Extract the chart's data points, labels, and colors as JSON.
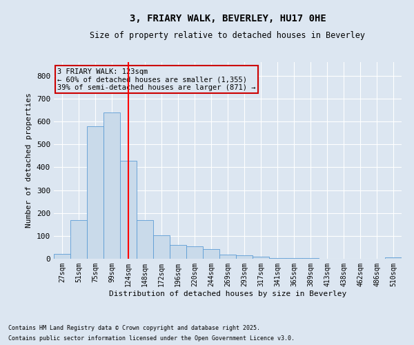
{
  "title": "3, FRIARY WALK, BEVERLEY, HU17 0HE",
  "subtitle": "Size of property relative to detached houses in Beverley",
  "xlabel": "Distribution of detached houses by size in Beverley",
  "ylabel": "Number of detached properties",
  "footnote1": "Contains HM Land Registry data © Crown copyright and database right 2025.",
  "footnote2": "Contains public sector information licensed under the Open Government Licence v3.0.",
  "categories": [
    "27sqm",
    "51sqm",
    "75sqm",
    "99sqm",
    "124sqm",
    "148sqm",
    "172sqm",
    "196sqm",
    "220sqm",
    "244sqm",
    "269sqm",
    "293sqm",
    "317sqm",
    "341sqm",
    "365sqm",
    "389sqm",
    "413sqm",
    "438sqm",
    "462sqm",
    "486sqm",
    "510sqm"
  ],
  "values": [
    20,
    168,
    578,
    640,
    430,
    168,
    103,
    60,
    55,
    42,
    18,
    14,
    8,
    4,
    3,
    2,
    1,
    1,
    1,
    0,
    7
  ],
  "bar_color": "#c9daea",
  "bar_edge_color": "#5b9bd5",
  "background_color": "#dce6f1",
  "grid_color": "#ffffff",
  "annotation_box_color": "#cc0000",
  "annotation_text1": "3 FRIARY WALK: 123sqm",
  "annotation_text2": "← 60% of detached houses are smaller (1,355)",
  "annotation_text3": "39% of semi-detached houses are larger (871) →",
  "red_line_x": 4,
  "ylim": [
    0,
    860
  ],
  "yticks": [
    0,
    100,
    200,
    300,
    400,
    500,
    600,
    700,
    800
  ]
}
